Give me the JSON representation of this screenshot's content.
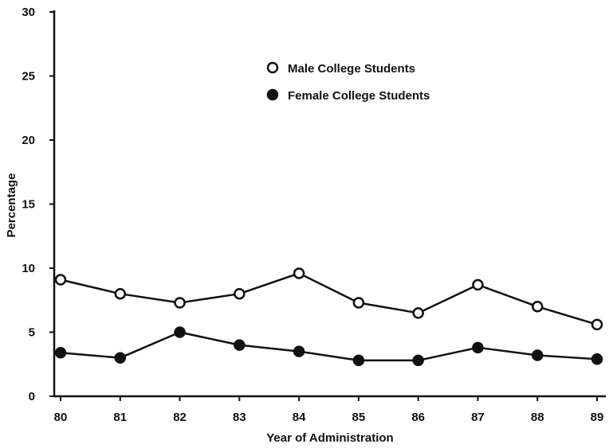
{
  "chart_data": {
    "type": "line",
    "xlabel": "Year of Administration",
    "ylabel": "Percentage",
    "x": [
      "80",
      "81",
      "82",
      "83",
      "84",
      "85",
      "86",
      "87",
      "88",
      "89"
    ],
    "ylim": [
      0,
      30
    ],
    "yticks": [
      "0",
      "5",
      "10",
      "15",
      "20",
      "25",
      "30"
    ],
    "grid": false,
    "legend_position": "top-center",
    "series": [
      {
        "name": "Male College Students",
        "marker": "open-circle",
        "values": [
          9.1,
          8.0,
          7.3,
          8.0,
          9.6,
          7.3,
          6.5,
          8.7,
          7.0,
          5.6
        ]
      },
      {
        "name": "Female College Students",
        "marker": "filled-circle",
        "values": [
          3.4,
          3.0,
          5.0,
          4.0,
          3.5,
          2.8,
          2.8,
          3.8,
          3.2,
          2.9
        ]
      }
    ],
    "colors": {
      "line": "#111111",
      "open_marker_fill": "#ffffff",
      "filled_marker_fill": "#111111"
    }
  }
}
